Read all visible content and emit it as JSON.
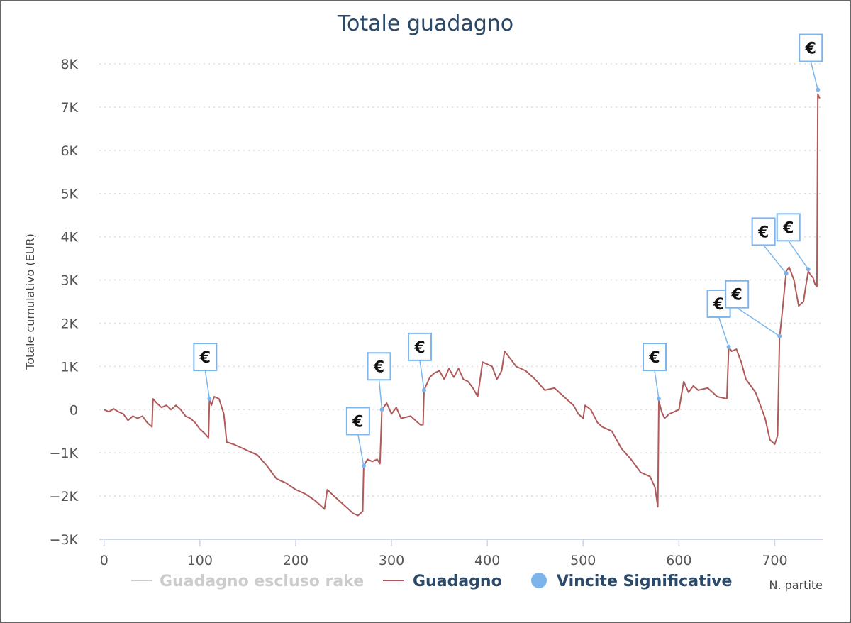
{
  "chart_data": {
    "type": "line",
    "title": "Totale guadagno",
    "xlabel": "N. partite",
    "ylabel": "Totale cumulativo (EUR)",
    "xlim": [
      -5,
      750
    ],
    "ylim": [
      -3000,
      8000
    ],
    "x_ticks": [
      0,
      100,
      200,
      300,
      400,
      500,
      600,
      700
    ],
    "y_ticks": [
      -3000,
      -2000,
      -1000,
      0,
      1000,
      2000,
      3000,
      4000,
      5000,
      6000,
      7000,
      8000
    ],
    "y_tick_labels": [
      "−3K",
      "−2K",
      "−1K",
      "0",
      "1K",
      "2K",
      "3K",
      "4K",
      "5K",
      "6K",
      "7K",
      "8K"
    ],
    "x_tick_labels": [
      "0",
      "100",
      "200",
      "300",
      "400",
      "500",
      "600",
      "700"
    ],
    "grid": "horizontal dotted",
    "legend_position": "bottom",
    "legend": [
      {
        "name": "Guadagno escluso rake",
        "color": "#cccccc",
        "symbol": "line",
        "hidden": true
      },
      {
        "name": "Guadagno",
        "color": "#b05a5a",
        "symbol": "line"
      },
      {
        "name": "Vincite Significative",
        "color": "#7cb5ec",
        "symbol": "circle"
      }
    ],
    "series": [
      {
        "name": "Guadagno",
        "color": "#b05a5a",
        "points": [
          [
            0,
            0
          ],
          [
            5,
            -50
          ],
          [
            10,
            20
          ],
          [
            15,
            -50
          ],
          [
            20,
            -100
          ],
          [
            25,
            -250
          ],
          [
            30,
            -150
          ],
          [
            35,
            -200
          ],
          [
            40,
            -150
          ],
          [
            45,
            -300
          ],
          [
            50,
            -400
          ],
          [
            51,
            250
          ],
          [
            55,
            150
          ],
          [
            60,
            50
          ],
          [
            65,
            100
          ],
          [
            70,
            0
          ],
          [
            75,
            100
          ],
          [
            80,
            0
          ],
          [
            85,
            -150
          ],
          [
            90,
            -200
          ],
          [
            95,
            -300
          ],
          [
            100,
            -450
          ],
          [
            105,
            -550
          ],
          [
            109,
            -650
          ],
          [
            110,
            250
          ],
          [
            112,
            100
          ],
          [
            115,
            300
          ],
          [
            120,
            250
          ],
          [
            125,
            -100
          ],
          [
            128,
            -750
          ],
          [
            135,
            -800
          ],
          [
            140,
            -850
          ],
          [
            150,
            -950
          ],
          [
            160,
            -1050
          ],
          [
            170,
            -1300
          ],
          [
            180,
            -1600
          ],
          [
            190,
            -1700
          ],
          [
            200,
            -1850
          ],
          [
            210,
            -1950
          ],
          [
            220,
            -2100
          ],
          [
            230,
            -2300
          ],
          [
            233,
            -1850
          ],
          [
            240,
            -2000
          ],
          [
            250,
            -2200
          ],
          [
            260,
            -2400
          ],
          [
            265,
            -2450
          ],
          [
            270,
            -2350
          ],
          [
            271,
            -1300
          ],
          [
            275,
            -1150
          ],
          [
            280,
            -1200
          ],
          [
            285,
            -1150
          ],
          [
            288,
            -1250
          ],
          [
            290,
            0
          ],
          [
            295,
            150
          ],
          [
            300,
            -100
          ],
          [
            305,
            50
          ],
          [
            310,
            -200
          ],
          [
            320,
            -150
          ],
          [
            330,
            -350
          ],
          [
            333,
            -350
          ],
          [
            334,
            450
          ],
          [
            340,
            750
          ],
          [
            345,
            850
          ],
          [
            350,
            900
          ],
          [
            355,
            700
          ],
          [
            360,
            950
          ],
          [
            365,
            750
          ],
          [
            370,
            950
          ],
          [
            375,
            700
          ],
          [
            380,
            650
          ],
          [
            385,
            500
          ],
          [
            390,
            300
          ],
          [
            395,
            1100
          ],
          [
            400,
            1050
          ],
          [
            405,
            1000
          ],
          [
            410,
            700
          ],
          [
            415,
            900
          ],
          [
            418,
            1350
          ],
          [
            425,
            1150
          ],
          [
            430,
            1000
          ],
          [
            440,
            900
          ],
          [
            450,
            700
          ],
          [
            460,
            450
          ],
          [
            470,
            500
          ],
          [
            480,
            300
          ],
          [
            490,
            100
          ],
          [
            495,
            -100
          ],
          [
            500,
            -200
          ],
          [
            502,
            100
          ],
          [
            508,
            0
          ],
          [
            515,
            -300
          ],
          [
            520,
            -400
          ],
          [
            530,
            -500
          ],
          [
            540,
            -900
          ],
          [
            550,
            -1150
          ],
          [
            560,
            -1450
          ],
          [
            570,
            -1550
          ],
          [
            575,
            -1800
          ],
          [
            578,
            -2250
          ],
          [
            579,
            200
          ],
          [
            582,
            -50
          ],
          [
            585,
            -200
          ],
          [
            590,
            -100
          ],
          [
            600,
            0
          ],
          [
            605,
            650
          ],
          [
            610,
            400
          ],
          [
            615,
            550
          ],
          [
            620,
            450
          ],
          [
            630,
            500
          ],
          [
            640,
            300
          ],
          [
            650,
            250
          ],
          [
            652,
            1450
          ],
          [
            655,
            1350
          ],
          [
            660,
            1400
          ],
          [
            665,
            1100
          ],
          [
            670,
            700
          ],
          [
            680,
            400
          ],
          [
            685,
            100
          ],
          [
            690,
            -200
          ],
          [
            695,
            -700
          ],
          [
            700,
            -800
          ],
          [
            703,
            -600
          ],
          [
            705,
            1650
          ],
          [
            708,
            2300
          ],
          [
            712,
            3200
          ],
          [
            715,
            3300
          ],
          [
            720,
            3000
          ],
          [
            725,
            2400
          ],
          [
            730,
            2500
          ],
          [
            732,
            2800
          ],
          [
            735,
            3200
          ],
          [
            738,
            3100
          ],
          [
            740,
            3050
          ],
          [
            742,
            2900
          ],
          [
            744,
            2850
          ],
          [
            745,
            7300
          ],
          [
            747,
            7200
          ]
        ]
      }
    ],
    "markers": {
      "name": "Vincite Significative",
      "color": "#7cb5ec",
      "symbol": "€",
      "points": [
        [
          110,
          250
        ],
        [
          271,
          -1300
        ],
        [
          290,
          0
        ],
        [
          334,
          450
        ],
        [
          579,
          250
        ],
        [
          652,
          1450
        ],
        [
          705,
          1700
        ],
        [
          712,
          3150
        ],
        [
          735,
          3250
        ],
        [
          745,
          7400
        ]
      ]
    }
  }
}
